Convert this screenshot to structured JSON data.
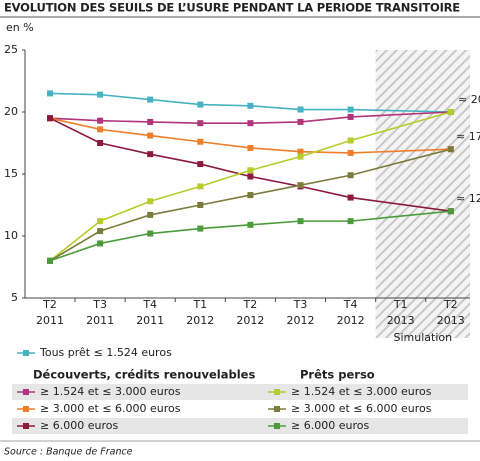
{
  "chart_data": {
    "type": "line",
    "title": "EVOLUTION DES SEUILS DE L’USURE PENDANT LA PERIODE TRANSITOIRE",
    "y_label": "en %",
    "categories": [
      [
        "T2",
        "2011"
      ],
      [
        "T3",
        "2011"
      ],
      [
        "T4",
        "2011"
      ],
      [
        "T1",
        "2012"
      ],
      [
        "T2",
        "2012"
      ],
      [
        "T3",
        "2012"
      ],
      [
        "T4",
        "2012"
      ],
      [
        "T1",
        "2013"
      ],
      [
        "T2",
        "2013"
      ]
    ],
    "ylim": [
      5,
      25
    ],
    "yticks": [
      5,
      10,
      15,
      20,
      25
    ],
    "simulation_label": "Simulation",
    "annotations": [
      "≈ 20",
      "≈ 17",
      "≈ 12"
    ],
    "legend_groups": [
      "Découverts, crédits renouvelables",
      "Prêts perso"
    ],
    "series": [
      {
        "name": "Tous prêt ≤ 1.524 euros",
        "color": "#45b3c2",
        "values": [
          21.5,
          21.4,
          21.0,
          20.6,
          20.5,
          20.2,
          20.2,
          null,
          20.0
        ]
      },
      {
        "name": "≥ 1.524 et ≤ 3.000 euros",
        "color": "#b0357a",
        "values": [
          19.5,
          19.3,
          19.2,
          19.1,
          19.1,
          19.2,
          19.6,
          null,
          20.0
        ]
      },
      {
        "name": "≥ 3.000 et ≤ 6.000 euros",
        "color": "#f07d28",
        "values": [
          19.5,
          18.6,
          18.1,
          17.6,
          17.1,
          16.8,
          16.7,
          null,
          17.0
        ]
      },
      {
        "name": "≥ 6.000 euros",
        "color": "#8c1a3c",
        "values": [
          19.5,
          17.5,
          16.6,
          15.8,
          14.8,
          14.0,
          13.1,
          null,
          12.0
        ]
      },
      {
        "name": "≥ 1.524 et ≤ 3.000 euros",
        "color": "#b6cc2a",
        "values": [
          8.0,
          11.2,
          12.8,
          14.0,
          15.3,
          16.4,
          17.7,
          null,
          20.0
        ]
      },
      {
        "name": "≥ 3.000 et ≤ 6.000 euros",
        "color": "#7b7b3c",
        "values": [
          8.0,
          10.4,
          11.7,
          12.5,
          13.3,
          14.1,
          14.9,
          null,
          17.0
        ]
      },
      {
        "name": "≥ 6.000 euros",
        "color": "#4b9b3b",
        "values": [
          8.0,
          9.4,
          10.2,
          10.6,
          10.9,
          11.2,
          11.2,
          null,
          12.0
        ]
      }
    ]
  }
}
